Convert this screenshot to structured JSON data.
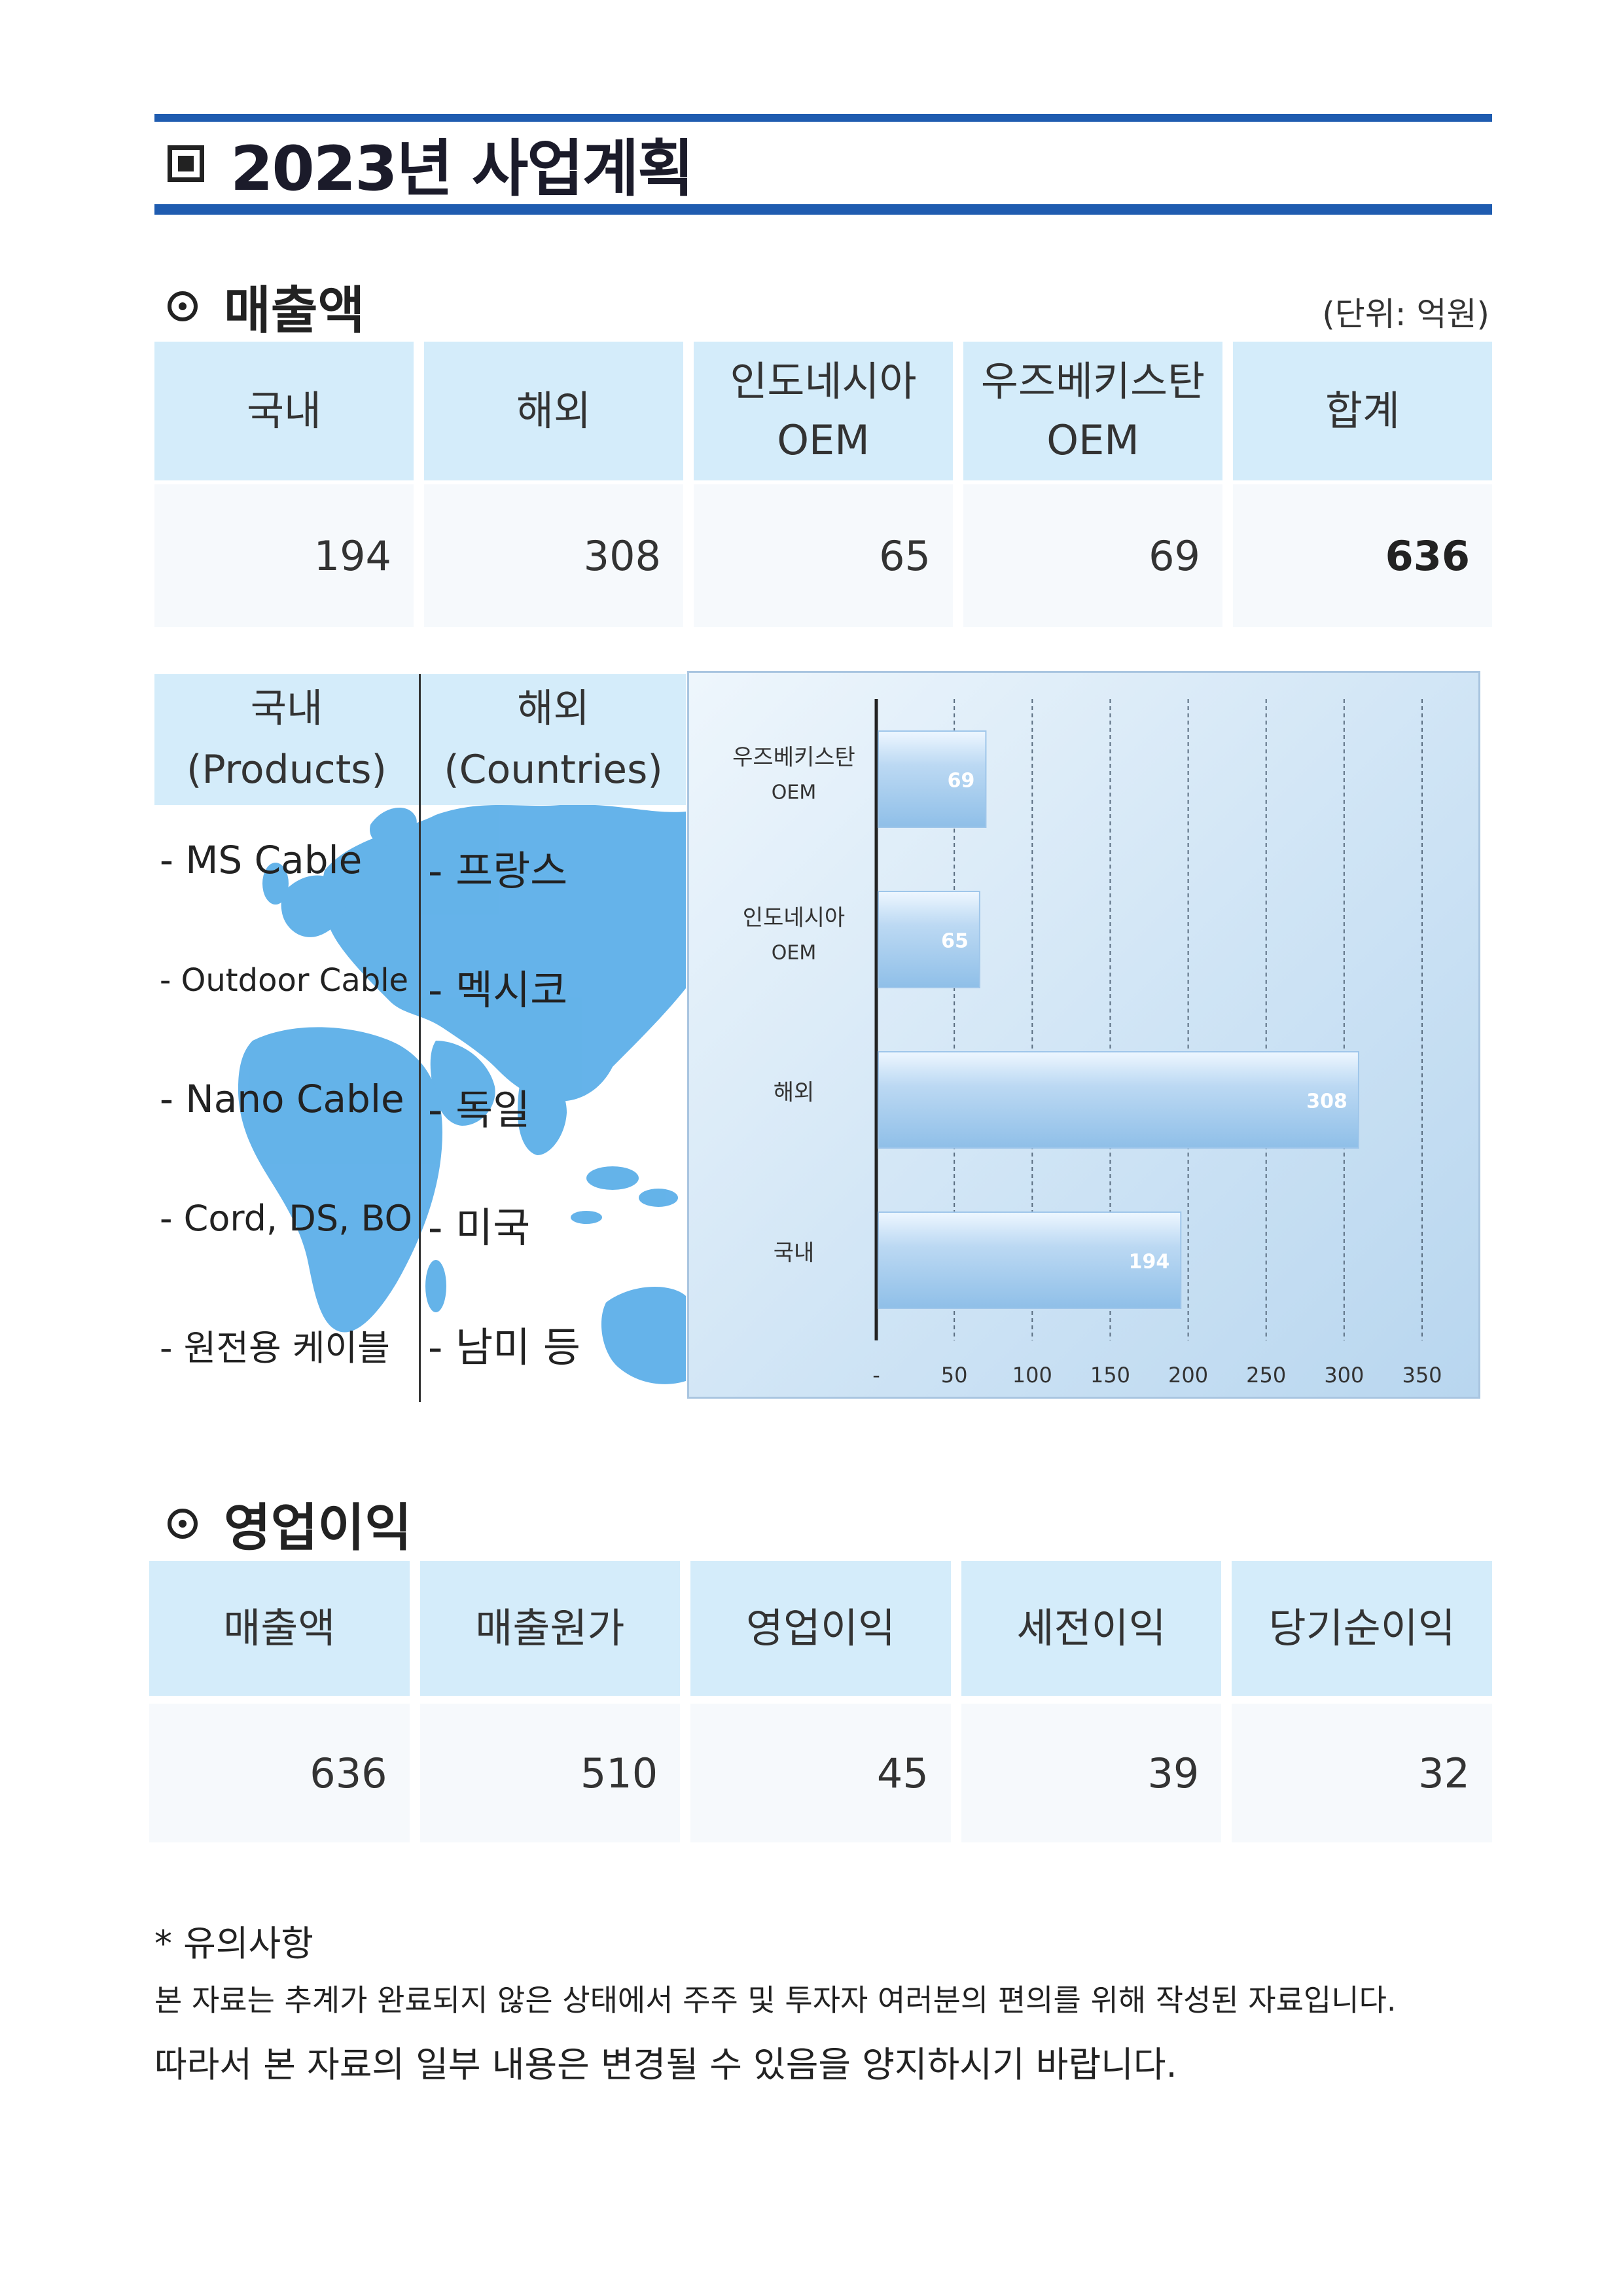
{
  "title": "2023년 사업계획",
  "sales": {
    "heading": "매출액",
    "unit": "(단위: 억원)",
    "headers": [
      "국내",
      "해외",
      "인도네시아\nOEM",
      "우즈베키스탄\nOEM",
      "합계"
    ],
    "values": [
      "194",
      "308",
      "65",
      "69",
      "636"
    ]
  },
  "markets": {
    "domestic_header": "국내\n(Products)",
    "overseas_header": "해외\n(Countries)",
    "products": [
      "- MS Cable",
      "- Outdoor Cable",
      "- Nano Cable",
      "- Cord, DS, BO",
      "- 원전용 케이블"
    ],
    "countries": [
      "- 프랑스",
      "- 멕시코",
      "- 독일",
      "- 미국",
      "- 남미 등"
    ]
  },
  "chart_data": {
    "type": "bar",
    "orientation": "horizontal",
    "categories": [
      "우즈베키스탄\nOEM",
      "인도네시아\nOEM",
      "해외",
      "국내"
    ],
    "values": [
      69,
      65,
      308,
      194
    ],
    "data_labels": [
      "69",
      "65",
      "308",
      "194"
    ],
    "xlim": [
      0,
      350
    ],
    "x_ticks": [
      "-",
      "50",
      "100",
      "150",
      "200",
      "250",
      "300",
      "350"
    ],
    "x_tick_values": [
      0,
      50,
      100,
      150,
      200,
      250,
      300,
      350
    ],
    "grid": "vertical dashed",
    "bar_color": "#bcd9f3",
    "bar_highlight": "#eef7ff"
  },
  "profit": {
    "heading": "영업이익",
    "headers": [
      "매출액",
      "매출원가",
      "영업이익",
      "세전이익",
      "당기순이익"
    ],
    "values": [
      "636",
      "510",
      "45",
      "39",
      "32"
    ]
  },
  "notes": {
    "title": "* 유의사항",
    "line1": "본 자료는 추계가 완료되지 않은 상태에서 주주 및 투자자 여러분의 편의를 위해 작성된 자료입니다.",
    "line2": "따라서 본 자료의 일부 내용은 변경될 수 있음을 양지하시기 바랍니다."
  },
  "colors": {
    "title_rule": "#1f5cb0",
    "header_fill": "#d4ecfa",
    "map_fill": "#4aa6e6"
  }
}
